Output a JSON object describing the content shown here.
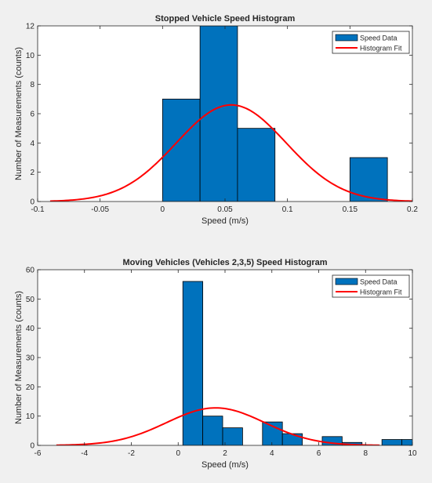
{
  "chart_data": [
    {
      "type": "bar",
      "title": "Stopped Vehicle Speed Histogram",
      "xlabel": "Speed (m/s)",
      "ylabel": "Number of Measurements (counts)",
      "xlim": [
        -0.1,
        0.2
      ],
      "ylim": [
        0,
        12
      ],
      "xticks": [
        -0.1,
        -0.05,
        0,
        0.05,
        0.1,
        0.15,
        0.2
      ],
      "xtick_labels": [
        "-0.1",
        "-0.05",
        "0",
        "0.05",
        "0.1",
        "0.15",
        "0.2"
      ],
      "yticks": [
        0,
        2,
        4,
        6,
        8,
        10,
        12
      ],
      "ytick_labels": [
        "0",
        "2",
        "4",
        "6",
        "8",
        "10",
        "12"
      ],
      "bins": [
        {
          "x0": 0.0,
          "x1": 0.03,
          "count": 7
        },
        {
          "x0": 0.03,
          "x1": 0.06,
          "count": 12
        },
        {
          "x0": 0.06,
          "x1": 0.09,
          "count": 5
        },
        {
          "x0": 0.15,
          "x1": 0.18,
          "count": 3
        }
      ],
      "fit": {
        "mean": 0.055,
        "sd": 0.044,
        "peak": 6.6,
        "x_range": [
          -0.09,
          0.2
        ]
      },
      "legend": {
        "position": "top-right",
        "entries": [
          "Speed Data",
          "Histogram Fit"
        ]
      },
      "colors": {
        "bars": "#0072bd",
        "fit": "#ff0000"
      }
    },
    {
      "type": "bar",
      "title": "Moving Vehicles (Vehicles 2,3,5) Speed Histogram",
      "xlabel": "Speed (m/s)",
      "ylabel": "Number of Measurements (counts)",
      "xlim": [
        -6,
        10
      ],
      "ylim": [
        0,
        60
      ],
      "xticks": [
        -6,
        -4,
        -2,
        0,
        2,
        4,
        6,
        8,
        10
      ],
      "xtick_labels": [
        "-6",
        "-4",
        "-2",
        "0",
        "2",
        "4",
        "6",
        "8",
        "10"
      ],
      "yticks": [
        0,
        10,
        20,
        30,
        40,
        50,
        60
      ],
      "ytick_labels": [
        "0",
        "10",
        "20",
        "30",
        "40",
        "50",
        "60"
      ],
      "bins": [
        {
          "x0": 0.2,
          "x1": 1.05,
          "count": 56
        },
        {
          "x0": 1.05,
          "x1": 1.9,
          "count": 10
        },
        {
          "x0": 1.9,
          "x1": 2.75,
          "count": 6
        },
        {
          "x0": 3.6,
          "x1": 4.45,
          "count": 8
        },
        {
          "x0": 4.45,
          "x1": 5.3,
          "count": 4
        },
        {
          "x0": 6.15,
          "x1": 7.0,
          "count": 3
        },
        {
          "x0": 7.0,
          "x1": 7.85,
          "count": 1
        },
        {
          "x0": 8.7,
          "x1": 9.55,
          "count": 2
        },
        {
          "x0": 9.55,
          "x1": 10.4,
          "count": 2
        }
      ],
      "fit": {
        "mean": 1.6,
        "sd": 2.1,
        "peak": 12.8,
        "x_range": [
          -5.2,
          8.6
        ]
      },
      "legend": {
        "position": "top-right",
        "entries": [
          "Speed Data",
          "Histogram Fit"
        ]
      },
      "colors": {
        "bars": "#0072bd",
        "fit": "#ff0000"
      }
    }
  ]
}
